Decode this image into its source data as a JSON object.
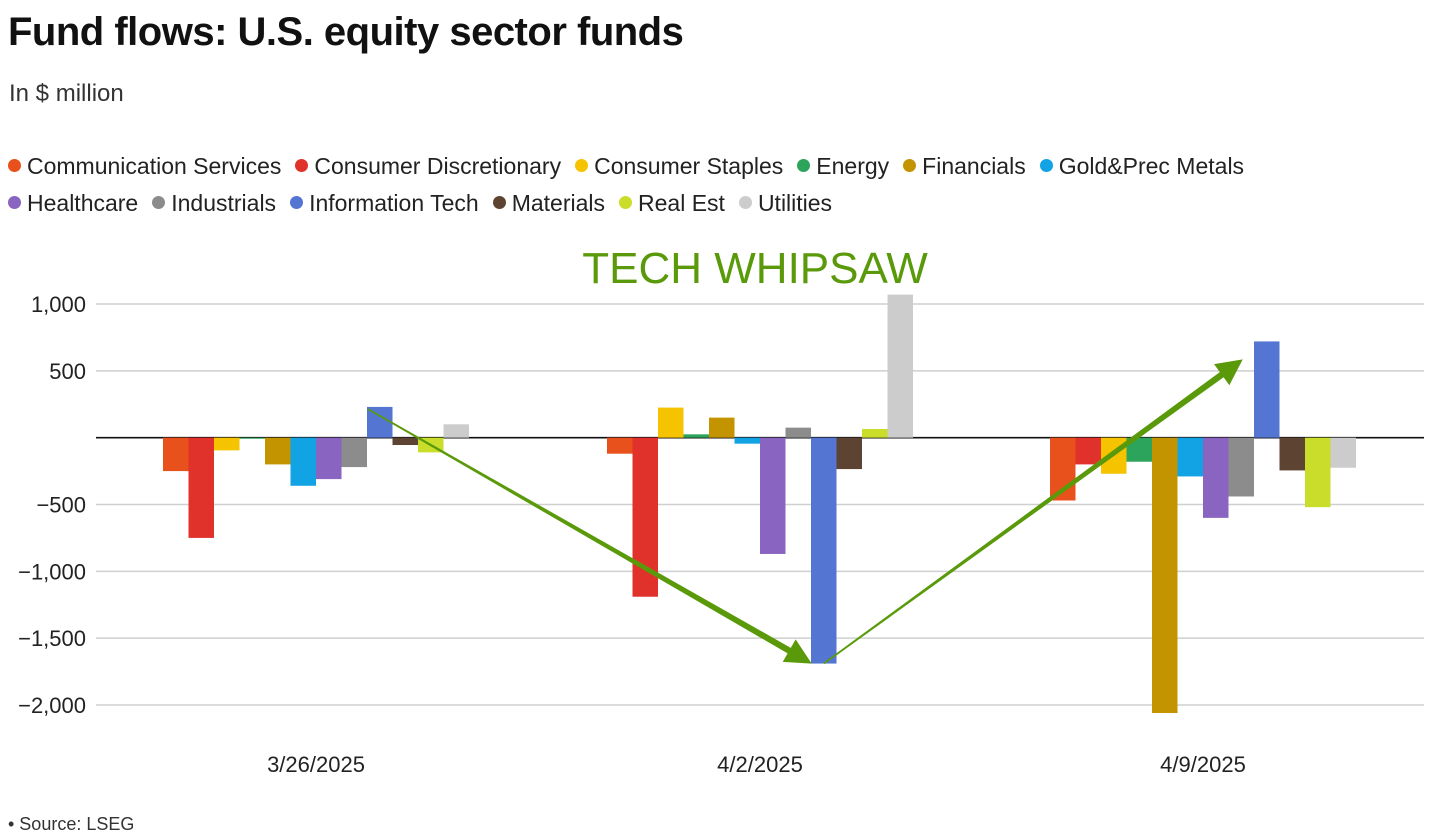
{
  "title": "Fund flows: U.S. equity sector funds",
  "subtitle": "In $ million",
  "source": "• Source: LSEG",
  "annotation": "TECH WHIPSAW",
  "annotation_color": "#5a9a0a",
  "legend": [
    {
      "label": "Communication Services",
      "color": "#e8501c"
    },
    {
      "label": "Consumer Discretionary",
      "color": "#e0312b"
    },
    {
      "label": "Consumer Staples",
      "color": "#f5c300"
    },
    {
      "label": "Energy",
      "color": "#2da45c"
    },
    {
      "label": "Financials",
      "color": "#c39300"
    },
    {
      "label": "Gold&Prec Metals",
      "color": "#12a3e5"
    },
    {
      "label": "Healthcare",
      "color": "#8a64c1"
    },
    {
      "label": "Industrials",
      "color": "#8c8c8c"
    },
    {
      "label": "Information Tech",
      "color": "#5476d2"
    },
    {
      "label": "Materials",
      "color": "#5d4432"
    },
    {
      "label": "Real Est",
      "color": "#cadd2a"
    },
    {
      "label": "Utilities",
      "color": "#cccccc"
    }
  ],
  "chart_data": {
    "type": "bar",
    "title": "Fund flows: U.S. equity sector funds",
    "subtitle": "In $ million",
    "categories": [
      "3/26/2025",
      "4/2/2025",
      "4/9/2025"
    ],
    "ylim": [
      -2000,
      1000
    ],
    "yticks": [
      {
        "value": 1000,
        "label": "1,000"
      },
      {
        "value": 500,
        "label": "500"
      },
      {
        "value": -500,
        "label": "−500"
      },
      {
        "value": -1000,
        "label": "−1,000"
      },
      {
        "value": -1500,
        "label": "−1,500"
      },
      {
        "value": -2000,
        "label": "−2,000"
      }
    ],
    "grid": true,
    "legend_position": "top",
    "series": [
      {
        "name": "Communication Services",
        "values": [
          -250,
          -120,
          -470
        ]
      },
      {
        "name": "Consumer Discretionary",
        "values": [
          -750,
          -1190,
          -200
        ]
      },
      {
        "name": "Consumer Staples",
        "values": [
          -95,
          225,
          -270
        ]
      },
      {
        "name": "Energy",
        "values": [
          -8,
          25,
          -180
        ]
      },
      {
        "name": "Financials",
        "values": [
          -200,
          150,
          -2060
        ]
      },
      {
        "name": "Gold&Prec Metals",
        "values": [
          -360,
          -45,
          -290
        ]
      },
      {
        "name": "Healthcare",
        "values": [
          -310,
          -870,
          -600
        ]
      },
      {
        "name": "Industrials",
        "values": [
          -220,
          75,
          -440
        ]
      },
      {
        "name": "Information Tech",
        "values": [
          230,
          -1690,
          720
        ]
      },
      {
        "name": "Materials",
        "values": [
          -55,
          -235,
          -245
        ]
      },
      {
        "name": "Real Est",
        "values": [
          -110,
          65,
          -520
        ]
      },
      {
        "name": "Utilities",
        "values": [
          100,
          1070,
          -225
        ]
      }
    ]
  }
}
